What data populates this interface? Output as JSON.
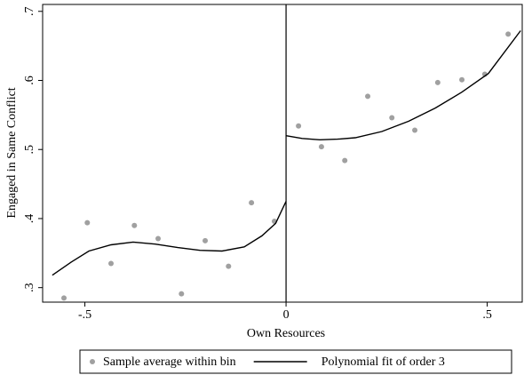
{
  "chart_data": {
    "type": "scatter",
    "x_label": "Own Resources",
    "y_label": "Engaged in Same Conflict",
    "xlim": [
      -0.605,
      0.587
    ],
    "ylim": [
      0.279,
      0.71
    ],
    "xticks": [
      {
        "value": -0.5,
        "label": "-.5"
      },
      0,
      {
        "value": 0.5,
        "label": ".5"
      }
    ],
    "yticks": [
      {
        "value": 0.3,
        "label": ".3"
      },
      {
        "value": 0.4,
        "label": ".4"
      },
      {
        "value": 0.5,
        "label": ".5"
      },
      {
        "value": 0.6,
        "label": ".6"
      },
      {
        "value": 0.7,
        "label": ".7"
      }
    ],
    "vline": 0,
    "grid": false,
    "legend": "bottom",
    "series": [
      {
        "name": "Sample average within bin",
        "color": "#a0a0a0",
        "kind": "points",
        "x": [
          -0.552,
          -0.494,
          -0.435,
          -0.377,
          -0.318,
          -0.26,
          -0.201,
          -0.143,
          -0.086,
          -0.029,
          0.031,
          0.088,
          0.146,
          0.203,
          0.263,
          0.32,
          0.377,
          0.437,
          0.494,
          0.552
        ],
        "values": [
          0.285,
          0.394,
          0.335,
          0.39,
          0.371,
          0.291,
          0.368,
          0.331,
          0.423,
          0.396,
          0.534,
          0.504,
          0.484,
          0.577,
          0.546,
          0.528,
          0.597,
          0.601,
          0.609,
          0.667
        ]
      },
      {
        "name": "Polynomial fit of order 3",
        "color": "#000000",
        "kind": "line",
        "x": [
          -0.581,
          -0.534,
          -0.49,
          -0.435,
          -0.38,
          -0.325,
          -0.269,
          -0.214,
          -0.159,
          -0.104,
          -0.06,
          -0.026,
          0,
          null,
          0,
          0.04,
          0.084,
          0.128,
          0.172,
          0.238,
          0.305,
          0.371,
          0.437,
          0.503,
          0.583
        ],
        "values": [
          0.318,
          0.337,
          0.353,
          0.362,
          0.366,
          0.363,
          0.358,
          0.354,
          0.353,
          0.359,
          0.375,
          0.393,
          0.425,
          null,
          0.52,
          0.516,
          0.514,
          0.515,
          0.517,
          0.526,
          0.541,
          0.56,
          0.583,
          0.61,
          0.672
        ]
      }
    ]
  }
}
